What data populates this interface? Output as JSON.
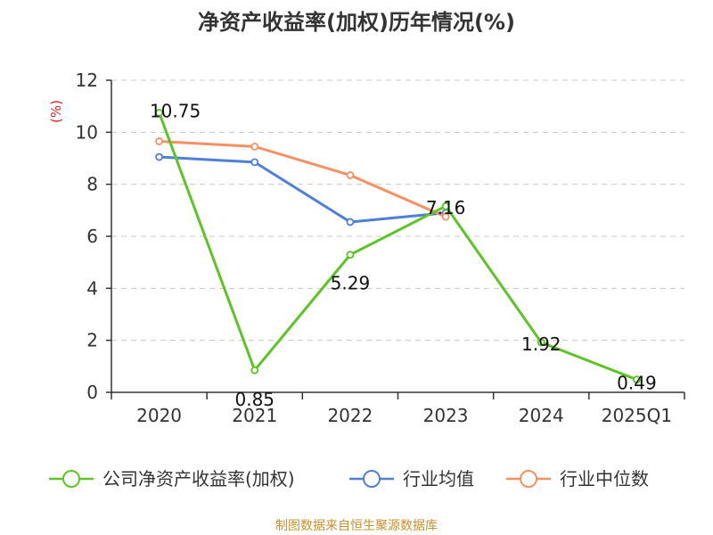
{
  "title": "净资产收益率(加权)历年情况(%)",
  "source": "制图数据来自恒生聚源数据库",
  "chart_data": {
    "type": "line",
    "title": "净资产收益率(加权)历年情况(%)",
    "ylabel": "(%)",
    "xlabel": "",
    "categories": [
      "2020",
      "2021",
      "2022",
      "2023",
      "2024",
      "2025Q1"
    ],
    "ylim": [
      0,
      12
    ],
    "yticks": [
      0,
      2,
      4,
      6,
      8,
      10,
      12
    ],
    "grid": true,
    "legend_position": "bottom",
    "series": [
      {
        "name": "公司净资产收益率(加权)",
        "color": "#5cc523",
        "values": [
          10.75,
          0.85,
          5.29,
          7.16,
          1.92,
          0.49
        ],
        "labels": [
          "10.75",
          "0.85",
          "5.29",
          "7.16",
          "1.92",
          "0.49"
        ]
      },
      {
        "name": "行业均值",
        "color": "#4f7fd8",
        "values": [
          9.05,
          8.85,
          6.55,
          6.9,
          null,
          null
        ]
      },
      {
        "name": "行业中位数",
        "color": "#f59063",
        "values": [
          9.65,
          9.45,
          8.35,
          6.75,
          null,
          null
        ]
      }
    ]
  }
}
